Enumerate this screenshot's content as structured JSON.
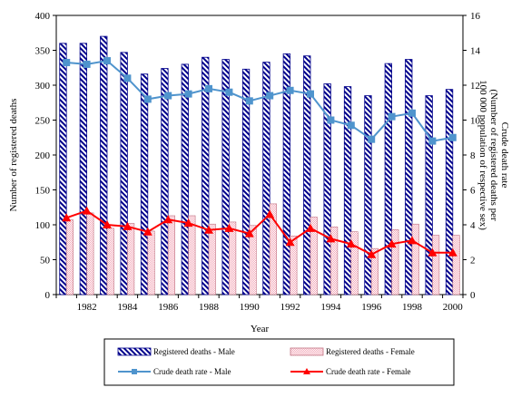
{
  "chart_data": {
    "type": "bar",
    "title": "",
    "xlabel": "Year",
    "ylabel": "Number of registered deaths",
    "y2label": "Crude death rate (Number of registered deaths per 100 000 population of respective sex)",
    "y2label_lines": [
      "Crude death rate",
      "(Number of registered deaths per",
      "100 000 population of respective sex)"
    ],
    "categories": [
      "1981",
      "1982",
      "1983",
      "1984",
      "1985",
      "1986",
      "1987",
      "1988",
      "1989",
      "1990",
      "1991",
      "1992",
      "1993",
      "1994",
      "1995",
      "1996",
      "1997",
      "1998",
      "1999",
      "2000"
    ],
    "x_tick_labels": [
      "1982",
      "1984",
      "1986",
      "1988",
      "1990",
      "1992",
      "1994",
      "1996",
      "1998",
      "2000"
    ],
    "ylim": [
      0,
      400
    ],
    "y_ticks": [
      0,
      50,
      100,
      150,
      200,
      250,
      300,
      350,
      400
    ],
    "y2lim": [
      0,
      16
    ],
    "y2_ticks": [
      0,
      2,
      4,
      6,
      8,
      10,
      12,
      14,
      16
    ],
    "grid": false,
    "legend_position": "bottom",
    "series": [
      {
        "name": "Registered deaths - Male",
        "kind": "bar",
        "axis": "left",
        "color": "#00008b",
        "pattern": "diagonal-hatch",
        "values": [
          360,
          360,
          370,
          347,
          316,
          324,
          330,
          340,
          337,
          323,
          333,
          345,
          342,
          302,
          298,
          285,
          331,
          337,
          285,
          294
        ]
      },
      {
        "name": "Registered deaths - Female",
        "kind": "bar",
        "axis": "left",
        "color": "#f4c2c2",
        "pattern": "fine-hatch",
        "values": [
          107,
          117,
          95,
          102,
          91,
          113,
          113,
          101,
          104,
          99,
          130,
          84,
          111,
          97,
          90,
          66,
          93,
          101,
          85,
          85
        ]
      },
      {
        "name": "Crude death rate - Male",
        "kind": "line",
        "axis": "right",
        "color": "#4f94cd",
        "marker": "square",
        "values": [
          13.3,
          13.2,
          13.4,
          12.4,
          11.2,
          11.4,
          11.5,
          11.8,
          11.6,
          11.1,
          11.4,
          11.7,
          11.5,
          10.0,
          9.7,
          8.9,
          10.2,
          10.4,
          8.8,
          9.0
        ]
      },
      {
        "name": "Crude death rate - Female",
        "kind": "line",
        "axis": "right",
        "color": "#ff0000",
        "marker": "triangle",
        "values": [
          4.4,
          4.8,
          4.0,
          3.9,
          3.6,
          4.3,
          4.1,
          3.7,
          3.8,
          3.5,
          4.6,
          3.0,
          3.8,
          3.2,
          2.9,
          2.3,
          2.9,
          3.1,
          2.4,
          2.4
        ]
      }
    ]
  }
}
